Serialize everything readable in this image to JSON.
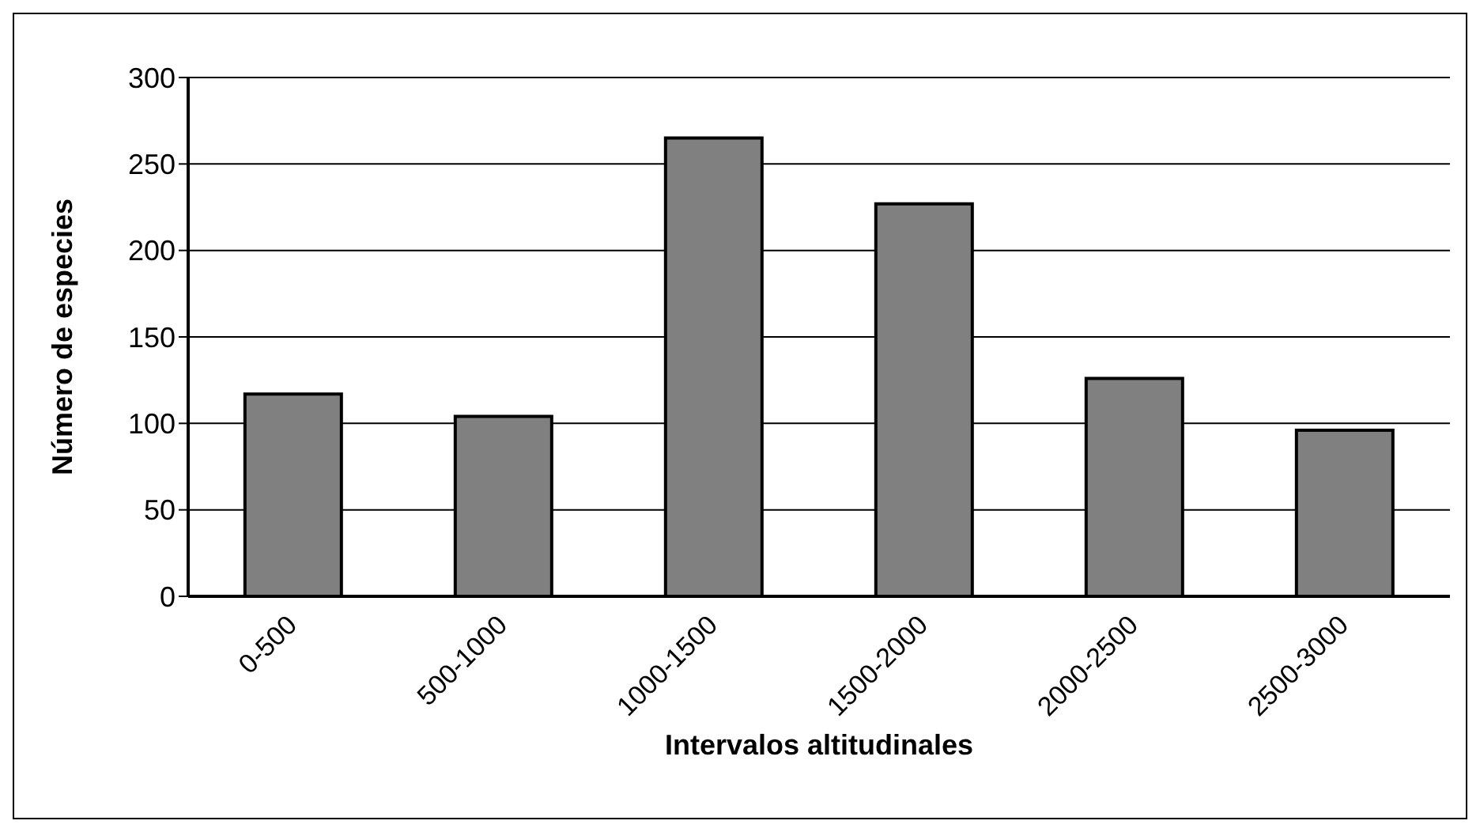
{
  "chart_data": {
    "type": "bar",
    "xlabel": "Intervalos altitudinales",
    "ylabel": "Número de especies",
    "categories": [
      "0-500",
      "500-1000",
      "1000-1500",
      "1500-2000",
      "2000-2500",
      "2500-3000"
    ],
    "values": [
      117,
      104,
      265,
      227,
      126,
      96
    ],
    "color": "#808080",
    "ylim": [
      0,
      300
    ],
    "yticks": [
      0,
      50,
      100,
      150,
      200,
      250,
      300
    ],
    "grid": "y"
  }
}
